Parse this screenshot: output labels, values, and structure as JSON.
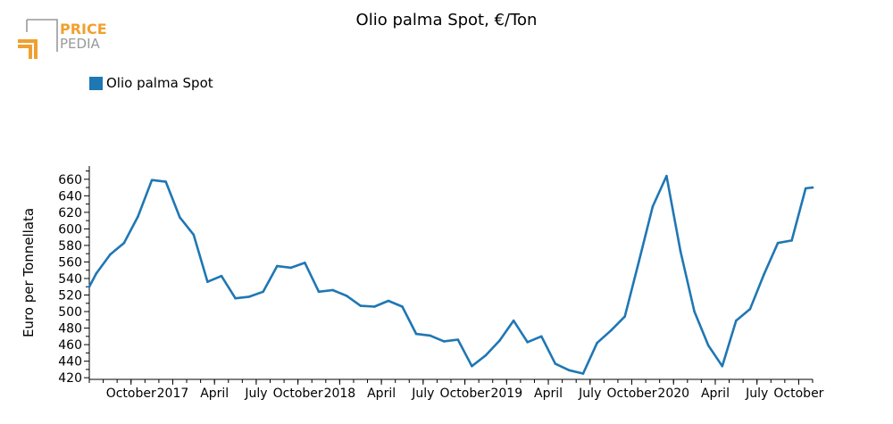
{
  "page_title": "Olio palma Spot, €/Ton",
  "logo": {
    "line1": "PRICE",
    "line2": "PEDIA"
  },
  "colors": {
    "series": "#1f77b4",
    "logo_orange": "#f0a030",
    "logo_gray": "#999999"
  },
  "legend": {
    "label": "Olio palma Spot"
  },
  "chart_data": {
    "type": "line",
    "title": "Olio palma Spot, €/Ton",
    "ylabel": "Euro per Tonnellata",
    "xlabel": "",
    "ylim": [
      418,
      676
    ],
    "yticks": [
      420,
      440,
      460,
      480,
      500,
      520,
      540,
      560,
      580,
      600,
      620,
      640,
      660
    ],
    "x_tick_labels": [
      {
        "month_index": 3,
        "label": "October"
      },
      {
        "month_index": 6,
        "label": "2017"
      },
      {
        "month_index": 9,
        "label": "April"
      },
      {
        "month_index": 12,
        "label": "July"
      },
      {
        "month_index": 15,
        "label": "October"
      },
      {
        "month_index": 18,
        "label": "2018"
      },
      {
        "month_index": 21,
        "label": "April"
      },
      {
        "month_index": 24,
        "label": "July"
      },
      {
        "month_index": 27,
        "label": "October"
      },
      {
        "month_index": 30,
        "label": "2019"
      },
      {
        "month_index": 33,
        "label": "April"
      },
      {
        "month_index": 36,
        "label": "July"
      },
      {
        "month_index": 39,
        "label": "October"
      },
      {
        "month_index": 42,
        "label": "2020"
      },
      {
        "month_index": 45,
        "label": "April"
      },
      {
        "month_index": 48,
        "label": "July"
      },
      {
        "month_index": 51,
        "label": "October"
      }
    ],
    "legend_position": "top-left",
    "grid": false,
    "series": [
      {
        "name": "Olio palma Spot",
        "x": [
          0,
          0.5,
          1.5,
          2.5,
          3.5,
          4.5,
          5.5,
          6.5,
          7.5,
          8.5,
          9.5,
          10.5,
          11.5,
          12.5,
          13.5,
          14.5,
          15.5,
          16.5,
          17.5,
          18.5,
          19.5,
          20.5,
          21.5,
          22.5,
          23.5,
          24.5,
          25.5,
          26.5,
          27.5,
          28.5,
          29.5,
          30.5,
          31.5,
          32.5,
          33.5,
          34.5,
          35.5,
          36.5,
          37.5,
          38.5,
          39.5,
          40.5,
          41.5,
          42.5,
          43.5,
          44.5,
          45.5,
          46.5,
          47.5,
          48.5,
          49.5,
          50.5,
          51.5,
          52
        ],
        "values": [
          530,
          546,
          569,
          583,
          615,
          659,
          657,
          614,
          593,
          536,
          543,
          516,
          518,
          524,
          555,
          553,
          559,
          524,
          526,
          519,
          507,
          506,
          513,
          506,
          473,
          471,
          464,
          466,
          434,
          447,
          465,
          489,
          463,
          470,
          437,
          429,
          425,
          462,
          477,
          494,
          560,
          627,
          664,
          573,
          500,
          459,
          434,
          489,
          503,
          545,
          583,
          586,
          649,
          650
        ]
      }
    ]
  }
}
